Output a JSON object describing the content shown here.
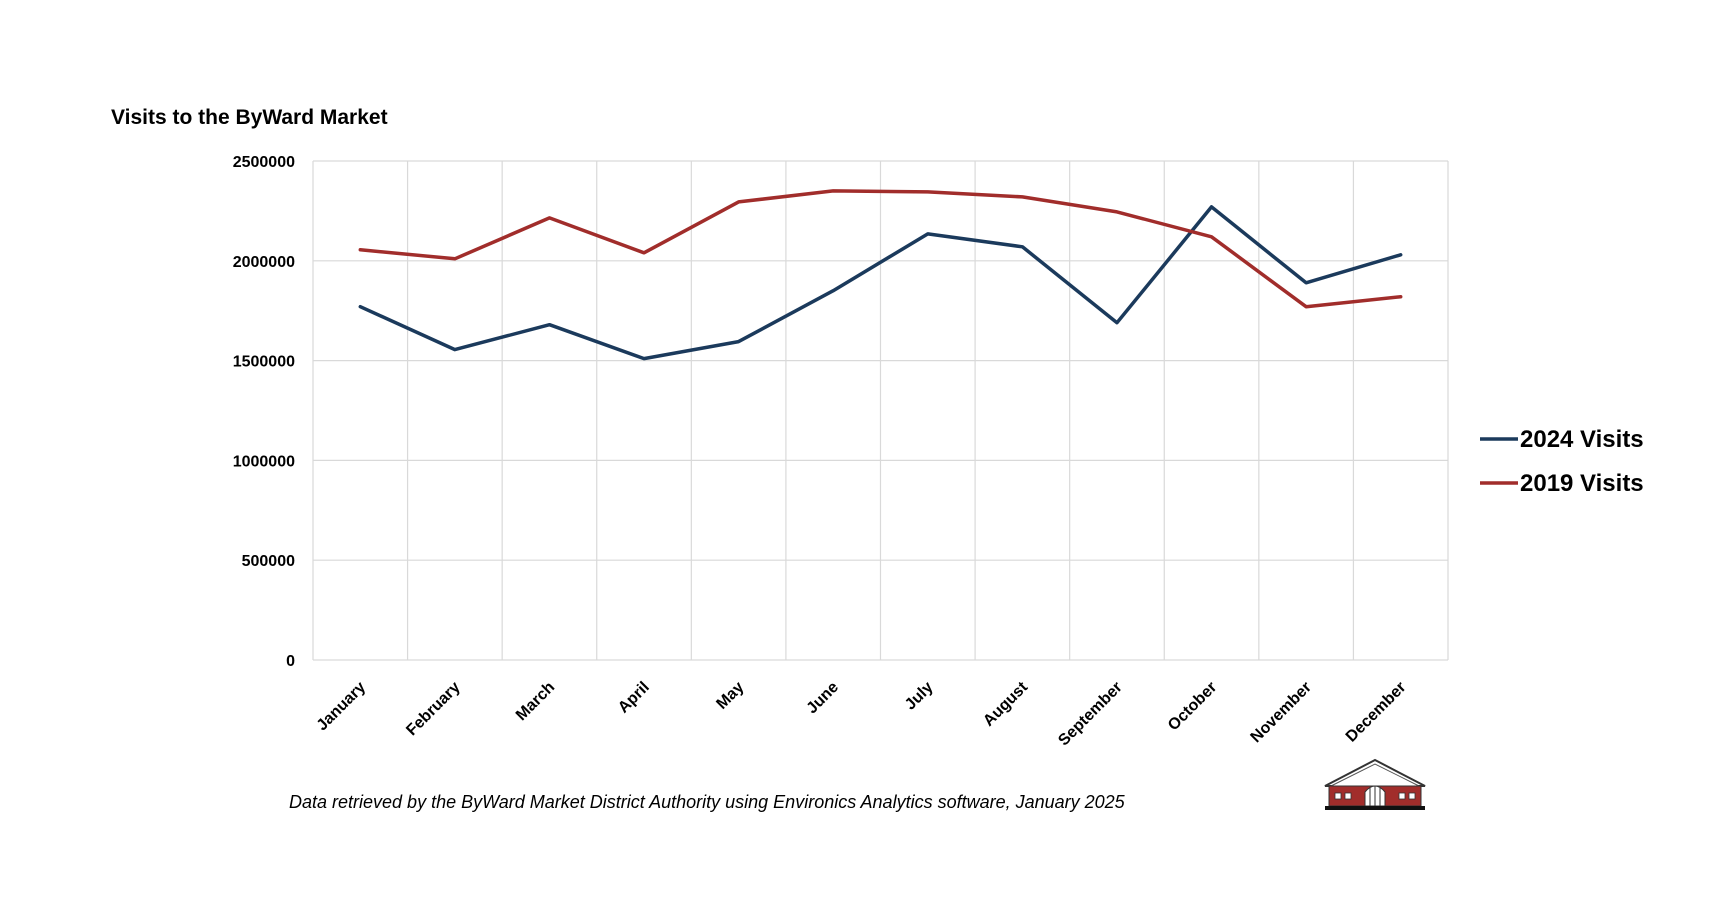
{
  "chart_data": {
    "type": "line",
    "title": "Visits to the ByWard Market",
    "categories": [
      "January",
      "February",
      "March",
      "April",
      "May",
      "June",
      "July",
      "August",
      "September",
      "October",
      "November",
      "December"
    ],
    "series": [
      {
        "name": "2024 Visits",
        "color": "#1b3a5c",
        "values": [
          1770000,
          1555000,
          1680000,
          1510000,
          1595000,
          1850000,
          2135000,
          2070000,
          1690000,
          2270000,
          1890000,
          2030000
        ]
      },
      {
        "name": "2019 Visits",
        "color": "#a12d2b",
        "values": [
          2055000,
          2010000,
          2215000,
          2040000,
          2295000,
          2350000,
          2345000,
          2320000,
          2245000,
          2120000,
          1770000,
          1820000
        ]
      }
    ],
    "yticks": [
      "0",
      "500000",
      "1000000",
      "1500000",
      "2000000",
      "2500000"
    ],
    "ylim": [
      0,
      2500000
    ],
    "grid": true,
    "legend_position": "right"
  },
  "source_note": "Data retrieved by the ByWard Market District Authority using Environics Analytics software, January 2025",
  "logo": {
    "icon": "byward-market-building-icon",
    "color": "#a12d2b"
  }
}
